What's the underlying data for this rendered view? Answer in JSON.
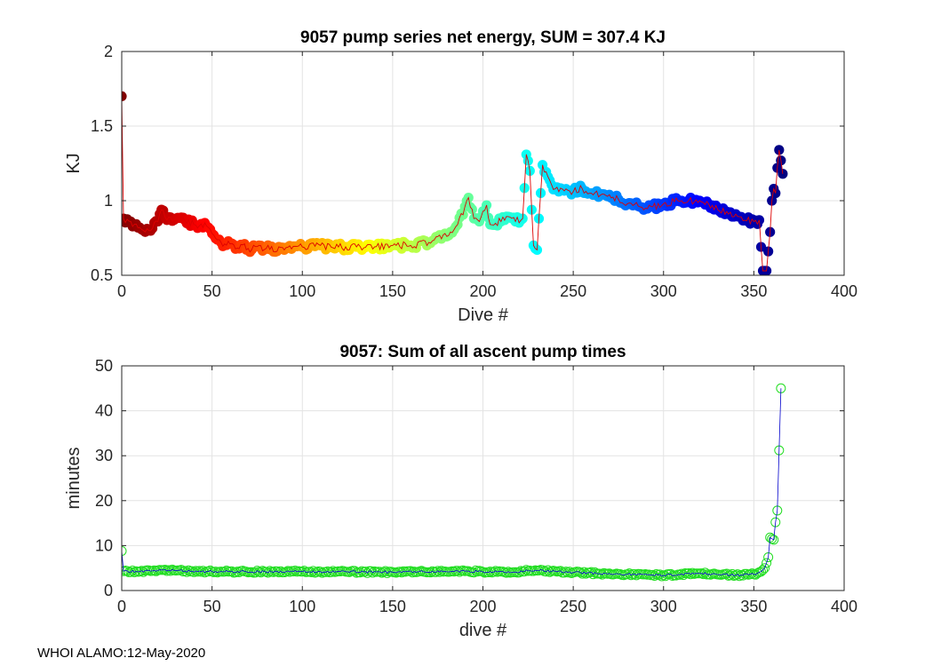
{
  "footer": "WHOI ALAMO:12-May-2020",
  "chart_data": [
    {
      "type": "scatter",
      "title": "9057 pump series net energy, SUM = 307.4 KJ",
      "xlabel": "Dive #",
      "ylabel": "KJ",
      "xlim": [
        0,
        400
      ],
      "ylim": [
        0.5,
        2
      ],
      "xticks": [
        0,
        50,
        100,
        150,
        200,
        250,
        300,
        350,
        400
      ],
      "yticks": [
        0.5,
        1,
        1.5,
        2
      ],
      "ytick_labels": [
        "0.5",
        "1",
        "1.5",
        "2"
      ],
      "grid": true,
      "marker_colormap": "jet-reversed by dive",
      "line_color": "#dd0000",
      "keypoints": [
        [
          0,
          1.7
        ],
        [
          1,
          0.88
        ],
        [
          5,
          0.86
        ],
        [
          10,
          0.82
        ],
        [
          15,
          0.8
        ],
        [
          20,
          0.86
        ],
        [
          22,
          0.94
        ],
        [
          25,
          0.87
        ],
        [
          30,
          0.88
        ],
        [
          40,
          0.84
        ],
        [
          47,
          0.83
        ],
        [
          50,
          0.78
        ],
        [
          55,
          0.72
        ],
        [
          60,
          0.71
        ],
        [
          70,
          0.68
        ],
        [
          80,
          0.68
        ],
        [
          90,
          0.67
        ],
        [
          100,
          0.69
        ],
        [
          110,
          0.7
        ],
        [
          120,
          0.69
        ],
        [
          130,
          0.69
        ],
        [
          140,
          0.69
        ],
        [
          150,
          0.7
        ],
        [
          160,
          0.7
        ],
        [
          170,
          0.72
        ],
        [
          175,
          0.76
        ],
        [
          182,
          0.79
        ],
        [
          186,
          0.84
        ],
        [
          190,
          0.96
        ],
        [
          192,
          1.02
        ],
        [
          195,
          0.88
        ],
        [
          198,
          0.86
        ],
        [
          202,
          0.97
        ],
        [
          204,
          0.84
        ],
        [
          210,
          0.86
        ],
        [
          215,
          0.89
        ],
        [
          218,
          0.86
        ],
        [
          222,
          0.88
        ],
        [
          224,
          1.31
        ],
        [
          226,
          1.2
        ],
        [
          228,
          0.7
        ],
        [
          230,
          0.67
        ],
        [
          231,
          0.88
        ],
        [
          233,
          1.24
        ],
        [
          236,
          1.16
        ],
        [
          240,
          1.08
        ],
        [
          250,
          1.06
        ],
        [
          255,
          1.08
        ],
        [
          260,
          1.05
        ],
        [
          270,
          1.04
        ],
        [
          280,
          0.98
        ],
        [
          290,
          0.95
        ],
        [
          300,
          0.98
        ],
        [
          310,
          1.0
        ],
        [
          320,
          1.0
        ],
        [
          330,
          0.94
        ],
        [
          340,
          0.91
        ],
        [
          350,
          0.86
        ],
        [
          353,
          0.87
        ],
        [
          354,
          0.69
        ],
        [
          355,
          0.53
        ],
        [
          356,
          0.53
        ],
        [
          357,
          0.53
        ],
        [
          358,
          0.66
        ],
        [
          359,
          0.79
        ],
        [
          360,
          1.0
        ],
        [
          361,
          1.08
        ],
        [
          362,
          1.05
        ],
        [
          363,
          1.22
        ],
        [
          364,
          1.34
        ],
        [
          366,
          1.18
        ]
      ]
    },
    {
      "type": "line",
      "title": "9057: Sum of all ascent pump times",
      "xlabel": "dive #",
      "ylabel": "minutes",
      "xlim": [
        0,
        400
      ],
      "ylim": [
        0,
        50
      ],
      "xticks": [
        0,
        50,
        100,
        150,
        200,
        250,
        300,
        350,
        400
      ],
      "yticks": [
        0,
        10,
        20,
        30,
        40,
        50
      ],
      "grid": true,
      "marker_color": "#22dd22",
      "line_color": "#0000cc",
      "keypoints": [
        [
          0,
          8.8
        ],
        [
          1,
          4.3
        ],
        [
          10,
          4.2
        ],
        [
          20,
          4.5
        ],
        [
          50,
          4.2
        ],
        [
          100,
          4.2
        ],
        [
          150,
          4.1
        ],
        [
          190,
          4.3
        ],
        [
          220,
          4.0
        ],
        [
          224,
          4.6
        ],
        [
          250,
          4.0
        ],
        [
          280,
          3.6
        ],
        [
          300,
          3.4
        ],
        [
          320,
          3.8
        ],
        [
          340,
          3.4
        ],
        [
          350,
          3.6
        ],
        [
          354,
          4.2
        ],
        [
          356,
          5.0
        ],
        [
          358,
          7.4
        ],
        [
          359,
          11.8
        ],
        [
          360,
          11.5
        ],
        [
          361,
          11.3
        ],
        [
          362,
          15.2
        ],
        [
          363,
          17.8
        ],
        [
          364,
          31.2
        ],
        [
          365,
          45.0
        ]
      ]
    }
  ]
}
